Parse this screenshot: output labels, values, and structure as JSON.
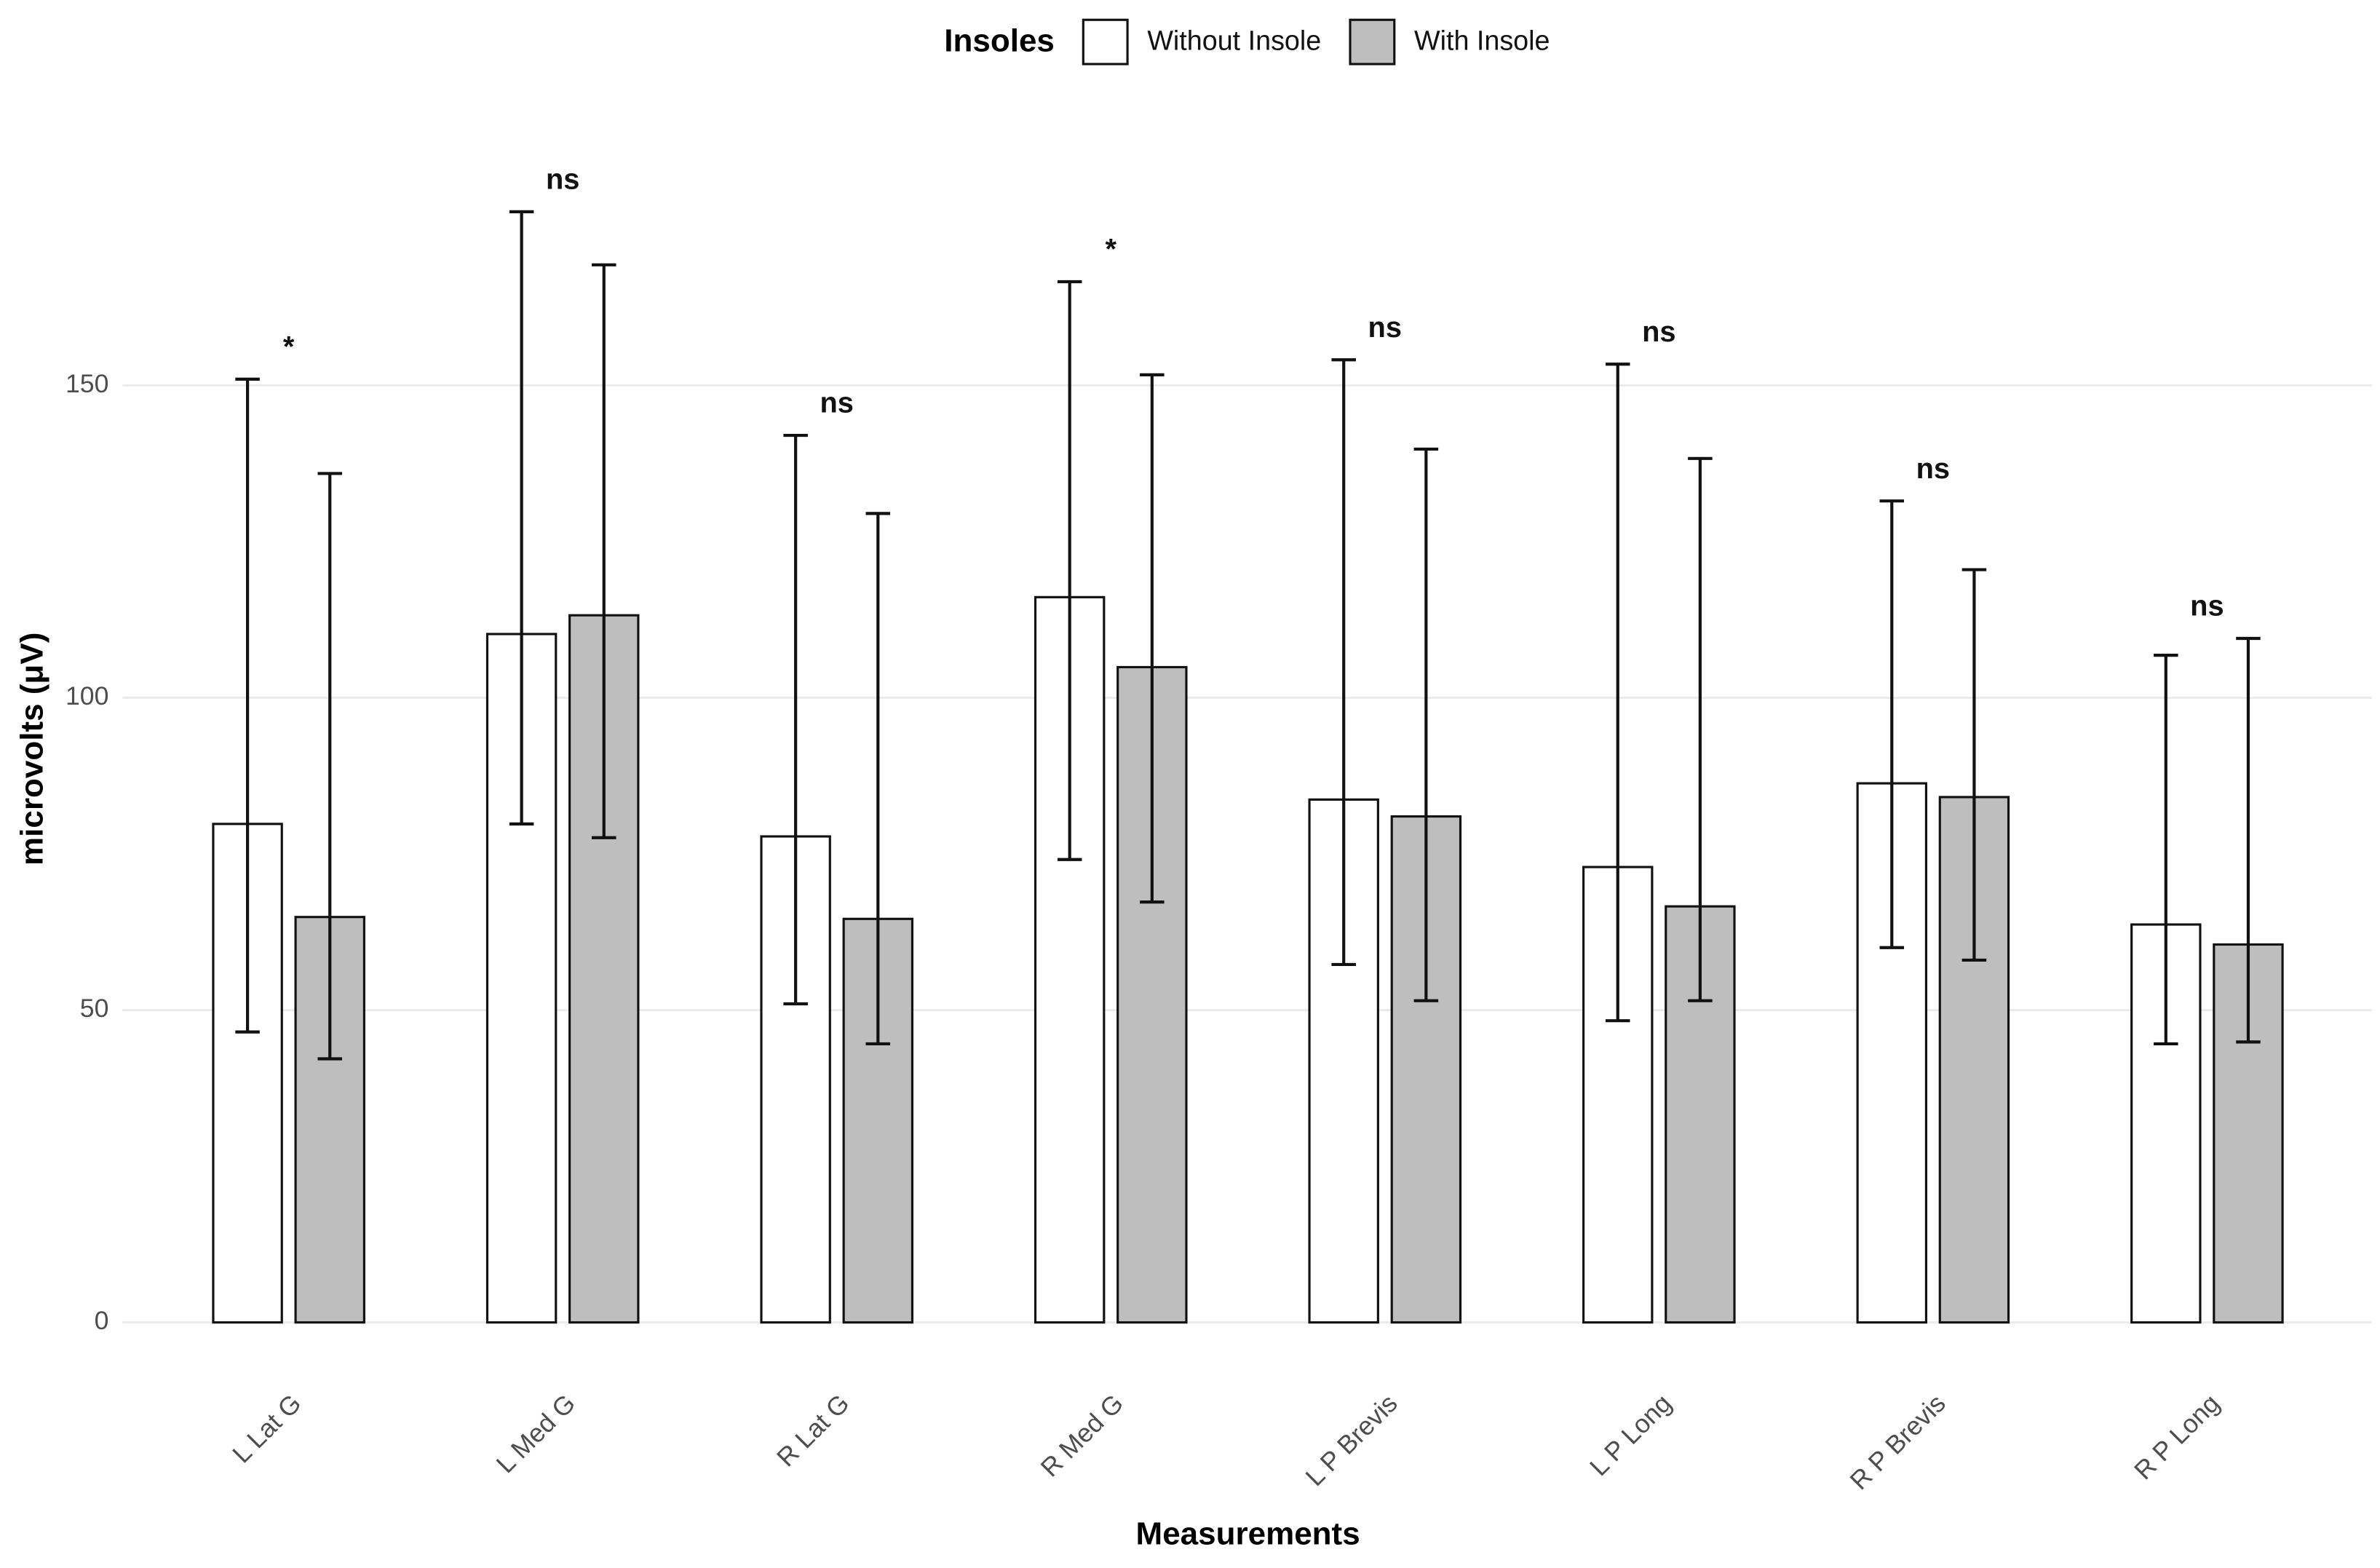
{
  "chart_data": {
    "type": "bar",
    "x_label": "Measurements",
    "y_label": "microvolts (μV)",
    "legend_title": "Insoles",
    "legend_position": "top",
    "grid": true,
    "categories": [
      "L Lat G",
      "L Med G",
      "R Lat G",
      "R Med G",
      "L P Brevis",
      "L P Long",
      "R P Brevis",
      "R P Long"
    ],
    "annotations": [
      "*",
      "ns",
      "ns",
      "*",
      "ns",
      "ns",
      "ns",
      "ns"
    ],
    "ylim": [
      0,
      178
    ],
    "yticks": [
      0,
      50,
      100,
      150
    ],
    "series": [
      {
        "name": "Without Insole",
        "color": "#ffffff",
        "values": [
          79.8,
          110.2,
          77.8,
          116.1,
          83.7,
          72.9,
          86.3,
          63.7
        ],
        "lower": [
          46.5,
          79.8,
          51,
          74.1,
          57.3,
          48.3,
          60,
          44.6
        ],
        "upper": [
          151,
          177.8,
          142,
          166.6,
          154.1,
          153.4,
          131.5,
          106.8
        ]
      },
      {
        "name": "With Insole",
        "color": "#bebebe",
        "values": [
          64.9,
          113.2,
          64.6,
          104.9,
          81,
          66.6,
          84.1,
          60.5
        ],
        "lower": [
          42.2,
          77.6,
          44.6,
          67.3,
          51.5,
          51.5,
          58,
          44.9
        ],
        "upper": [
          135.9,
          169.3,
          129.5,
          151.7,
          139.8,
          138.3,
          120.5,
          109.5
        ]
      }
    ]
  }
}
